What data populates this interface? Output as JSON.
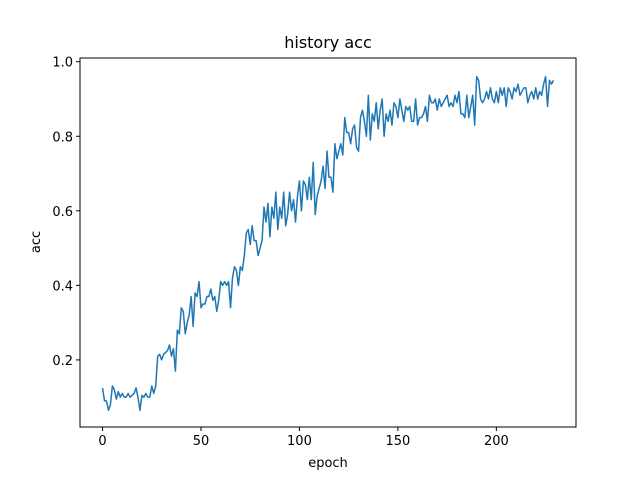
{
  "chart_data": {
    "type": "line",
    "title": "history acc",
    "x_label": "epoch",
    "y_label": "acc",
    "color": "#1f77b4",
    "x": [
      0,
      1,
      2,
      3,
      4,
      5,
      6,
      7,
      8,
      9,
      10,
      11,
      12,
      13,
      14,
      15,
      16,
      17,
      18,
      19,
      20,
      21,
      22,
      23,
      24,
      25,
      26,
      27,
      28,
      29,
      30,
      31,
      32,
      33,
      34,
      35,
      36,
      37,
      38,
      39,
      40,
      41,
      42,
      43,
      44,
      45,
      46,
      47,
      48,
      49,
      50,
      51,
      52,
      53,
      54,
      55,
      56,
      57,
      58,
      59,
      60,
      61,
      62,
      63,
      64,
      65,
      66,
      67,
      68,
      69,
      70,
      71,
      72,
      73,
      74,
      75,
      76,
      77,
      78,
      79,
      80,
      81,
      82,
      83,
      84,
      85,
      86,
      87,
      88,
      89,
      90,
      91,
      92,
      93,
      94,
      95,
      96,
      97,
      98,
      99,
      100,
      101,
      102,
      103,
      104,
      105,
      106,
      107,
      108,
      109,
      110,
      111,
      112,
      113,
      114,
      115,
      116,
      117,
      118,
      119,
      120,
      121,
      122,
      123,
      124,
      125,
      126,
      127,
      128,
      129,
      130,
      131,
      132,
      133,
      134,
      135,
      136,
      137,
      138,
      139,
      140,
      141,
      142,
      143,
      144,
      145,
      146,
      147,
      148,
      149,
      150,
      151,
      152,
      153,
      154,
      155,
      156,
      157,
      158,
      159,
      160,
      161,
      162,
      163,
      164,
      165,
      166,
      167,
      168,
      169,
      170,
      171,
      172,
      173,
      174,
      175,
      176,
      177,
      178,
      179,
      180,
      181,
      182,
      183,
      184,
      185,
      186,
      187,
      188,
      189,
      190,
      191,
      192,
      193,
      194,
      195,
      196,
      197,
      198,
      199,
      200,
      201,
      202,
      203,
      204,
      205,
      206,
      207,
      208,
      209,
      210,
      211,
      212,
      213,
      214,
      215,
      216,
      217,
      218,
      219,
      220,
      221,
      222,
      223,
      224,
      225,
      226,
      227,
      228,
      229
    ],
    "values": [
      0.125,
      0.09,
      0.09,
      0.065,
      0.08,
      0.13,
      0.12,
      0.095,
      0.115,
      0.1,
      0.11,
      0.1,
      0.1,
      0.11,
      0.1,
      0.105,
      0.11,
      0.125,
      0.1,
      0.065,
      0.105,
      0.1,
      0.11,
      0.1,
      0.1,
      0.13,
      0.11,
      0.13,
      0.21,
      0.215,
      0.2,
      0.215,
      0.22,
      0.225,
      0.24,
      0.21,
      0.23,
      0.17,
      0.28,
      0.27,
      0.34,
      0.33,
      0.27,
      0.3,
      0.32,
      0.37,
      0.29,
      0.38,
      0.37,
      0.41,
      0.34,
      0.35,
      0.35,
      0.37,
      0.37,
      0.39,
      0.36,
      0.37,
      0.33,
      0.36,
      0.41,
      0.4,
      0.41,
      0.4,
      0.41,
      0.34,
      0.42,
      0.45,
      0.44,
      0.4,
      0.45,
      0.44,
      0.48,
      0.54,
      0.55,
      0.51,
      0.56,
      0.52,
      0.52,
      0.48,
      0.5,
      0.52,
      0.61,
      0.57,
      0.62,
      0.53,
      0.61,
      0.58,
      0.65,
      0.55,
      0.61,
      0.58,
      0.65,
      0.56,
      0.59,
      0.65,
      0.6,
      0.63,
      0.57,
      0.64,
      0.68,
      0.6,
      0.68,
      0.67,
      0.63,
      0.69,
      0.63,
      0.73,
      0.59,
      0.64,
      0.66,
      0.68,
      0.72,
      0.66,
      0.76,
      0.69,
      0.69,
      0.65,
      0.78,
      0.74,
      0.76,
      0.78,
      0.75,
      0.85,
      0.81,
      0.81,
      0.78,
      0.82,
      0.83,
      0.77,
      0.76,
      0.85,
      0.87,
      0.84,
      0.8,
      0.91,
      0.79,
      0.86,
      0.84,
      0.89,
      0.82,
      0.87,
      0.9,
      0.8,
      0.86,
      0.84,
      0.87,
      0.83,
      0.89,
      0.88,
      0.85,
      0.9,
      0.87,
      0.84,
      0.88,
      0.87,
      0.88,
      0.84,
      0.84,
      0.9,
      0.83,
      0.85,
      0.85,
      0.86,
      0.88,
      0.84,
      0.91,
      0.89,
      0.89,
      0.9,
      0.87,
      0.9,
      0.88,
      0.89,
      0.9,
      0.91,
      0.88,
      0.89,
      0.88,
      0.91,
      0.89,
      0.92,
      0.86,
      0.86,
      0.85,
      0.91,
      0.85,
      0.88,
      0.91,
      0.83,
      0.96,
      0.95,
      0.9,
      0.89,
      0.9,
      0.92,
      0.9,
      0.93,
      0.9,
      0.89,
      0.92,
      0.89,
      0.93,
      0.91,
      0.93,
      0.88,
      0.93,
      0.92,
      0.9,
      0.93,
      0.92,
      0.94,
      0.91,
      0.92,
      0.93,
      0.93,
      0.89,
      0.91,
      0.92,
      0.9,
      0.93,
      0.9,
      0.92,
      0.91,
      0.94,
      0.96,
      0.88,
      0.95,
      0.94,
      0.95
    ],
    "xlim": [
      -11.45,
      240.45
    ],
    "xticks": [
      0,
      50,
      100,
      150,
      200
    ],
    "ylim": [
      0.02,
      1.01
    ],
    "yticks": [
      0.2,
      0.4,
      0.6,
      0.8,
      {
        "value": 1,
        "label": "1.0"
      }
    ]
  }
}
